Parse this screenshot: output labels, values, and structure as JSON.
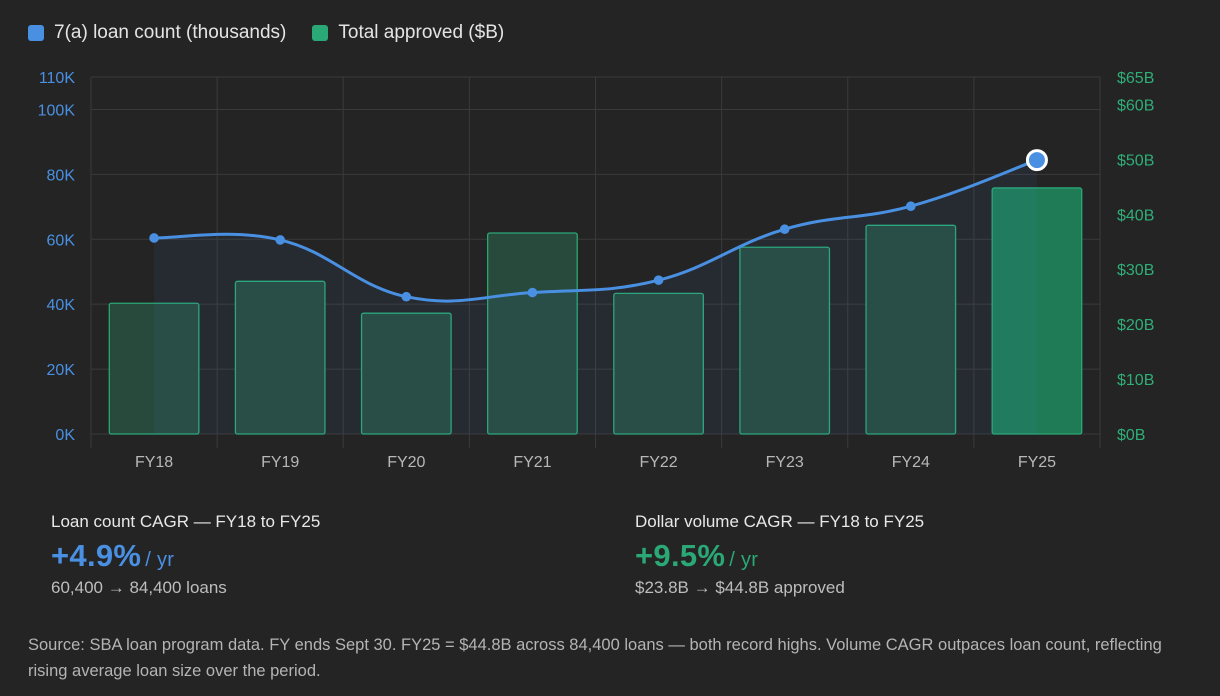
{
  "legend": [
    {
      "label": "7(a) loan count (thousands)",
      "color": "#4a90e2"
    },
    {
      "label": "Total approved ($B)",
      "color": "#2aa876"
    }
  ],
  "chart_data": {
    "type": "bar+line",
    "categories": [
      "FY18",
      "FY19",
      "FY20",
      "FY21",
      "FY22",
      "FY23",
      "FY24",
      "FY25"
    ],
    "series": [
      {
        "name": "7(a) loan count (thousands)",
        "type": "line",
        "axis": "left",
        "values": [
          60.4,
          59.8,
          42.3,
          43.6,
          47.4,
          63.1,
          70.2,
          84.4
        ]
      },
      {
        "name": "Total approved ($B)",
        "type": "bar",
        "axis": "right",
        "values": [
          23.8,
          27.8,
          22.0,
          36.6,
          25.6,
          34.0,
          38.0,
          44.8
        ]
      }
    ],
    "left_axis": {
      "ylim": [
        0,
        110
      ],
      "ticks": [
        0,
        20,
        40,
        60,
        80,
        100,
        110
      ],
      "tick_labels": [
        "0K",
        "20K",
        "40K",
        "60K",
        "80K",
        "100K",
        "110K"
      ]
    },
    "right_axis": {
      "ylim": [
        0,
        65
      ],
      "ticks": [
        0,
        10,
        20,
        30,
        40,
        50,
        60,
        65
      ],
      "tick_labels": [
        "$0B",
        "$10B",
        "$20B",
        "$30B",
        "$40B",
        "$50B",
        "$60B",
        "$65B"
      ]
    },
    "grid": true,
    "highlight_index": 7
  },
  "stats": [
    {
      "title": "Loan count CAGR — FY18 to FY25",
      "value": "+4.9%",
      "unit": "/ yr",
      "sub": "60,400 → 84,400 loans",
      "color": "#4a90e2"
    },
    {
      "title": "Dollar volume CAGR — FY18 to FY25",
      "value": "+9.5%",
      "unit": "/ yr",
      "sub": "$23.8B → $44.8B approved",
      "color": "#2aa876"
    }
  ],
  "source": "Source: SBA loan program data. FY ends Sept 30. FY25 = $44.8B across 84,400 loans — both record highs. Volume CAGR outpaces loan count, reflecting rising average loan size over the period."
}
